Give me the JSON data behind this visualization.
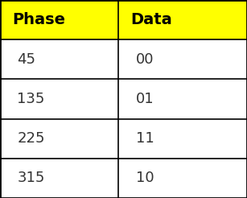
{
  "headers": [
    "Phase",
    "Data"
  ],
  "rows": [
    [
      "45",
      "00"
    ],
    [
      "135",
      "01"
    ],
    [
      "225",
      "11"
    ],
    [
      "315",
      "10"
    ]
  ],
  "header_bg_color": "#FFFF00",
  "header_text_color": "#000000",
  "row_bg_color": "#FFFFFF",
  "row_text_color": "#333333",
  "border_color": "#000000",
  "font_size": 13,
  "header_font_size": 14,
  "fig_width": 3.07,
  "fig_height": 2.46,
  "dpi": 100,
  "outer_border_lw": 2.0,
  "inner_border_lw": 1.2,
  "col_split": 0.48
}
